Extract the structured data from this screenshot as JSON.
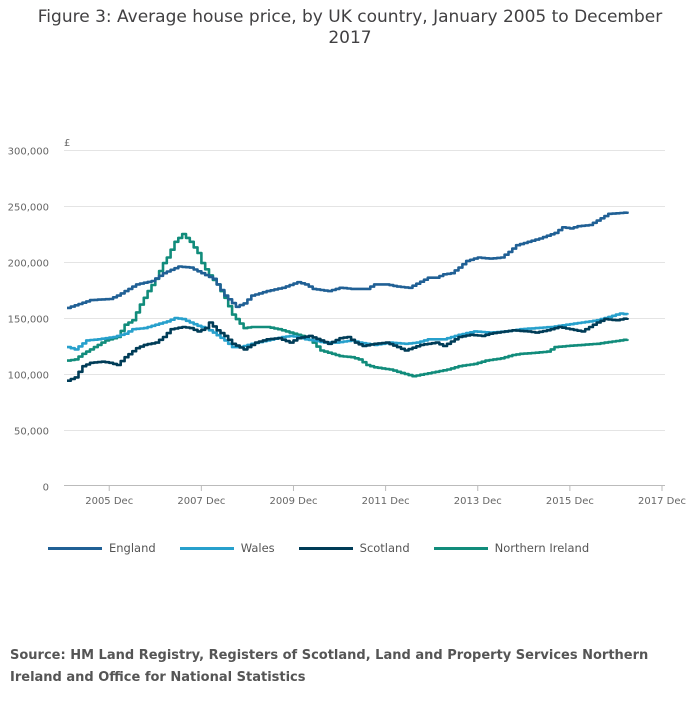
{
  "chart_data": {
    "type": "line",
    "title": "Figure 3: Average house price, by UK country, January 2005 to December 2017",
    "ylabel": "£",
    "ylim": [
      0,
      300000
    ],
    "y_ticks": [
      "0",
      "50,000",
      "100,000",
      "150,000",
      "200,000",
      "250,000",
      "300,000"
    ],
    "y_tick_values": [
      0,
      50000,
      100000,
      150000,
      200000,
      250000,
      300000
    ],
    "x_ticks": [
      "2005 Dec",
      "2007 Dec",
      "2009 Dec",
      "2011 Dec",
      "2013 Dec",
      "2015 Dec",
      "2017 Dec"
    ],
    "x_tick_months": [
      11,
      35,
      59,
      83,
      107,
      131,
      155
    ],
    "x_range_months": [
      0,
      155
    ],
    "grid": true,
    "legend_position": "bottom",
    "series": [
      {
        "name": "England",
        "color": "#206095",
        "anchors": [
          [
            0,
            159000
          ],
          [
            6,
            166000
          ],
          [
            11,
            167000
          ],
          [
            13,
            170000
          ],
          [
            18,
            180000
          ],
          [
            22,
            183000
          ],
          [
            25,
            190000
          ],
          [
            29,
            196000
          ],
          [
            32,
            195000
          ],
          [
            35,
            190000
          ],
          [
            38,
            185000
          ],
          [
            41,
            170000
          ],
          [
            44,
            160000
          ],
          [
            46,
            163000
          ],
          [
            48,
            170000
          ],
          [
            52,
            174000
          ],
          [
            56,
            177000
          ],
          [
            60,
            182000
          ],
          [
            62,
            180000
          ],
          [
            64,
            176000
          ],
          [
            68,
            174000
          ],
          [
            71,
            177000
          ],
          [
            74,
            176000
          ],
          [
            78,
            176000
          ],
          [
            80,
            180000
          ],
          [
            83,
            180000
          ],
          [
            86,
            178000
          ],
          [
            89,
            177000
          ],
          [
            94,
            186000
          ],
          [
            96,
            186000
          ],
          [
            98,
            189000
          ],
          [
            100,
            190000
          ],
          [
            102,
            195000
          ],
          [
            104,
            201000
          ],
          [
            107,
            204000
          ],
          [
            110,
            203000
          ],
          [
            113,
            204000
          ],
          [
            115,
            209000
          ],
          [
            117,
            215000
          ],
          [
            120,
            218000
          ],
          [
            123,
            221000
          ],
          [
            127,
            226000
          ],
          [
            129,
            231000
          ],
          [
            131,
            230000
          ],
          [
            133,
            232000
          ],
          [
            136,
            233000
          ],
          [
            138,
            237000
          ],
          [
            141,
            243000
          ],
          [
            145,
            244000
          ],
          [
            146,
            245000
          ]
        ]
      },
      {
        "name": "Wales",
        "color": "#27A0CC",
        "anchors": [
          [
            0,
            124000
          ],
          [
            2,
            122000
          ],
          [
            5,
            130000
          ],
          [
            8,
            131000
          ],
          [
            12,
            133000
          ],
          [
            15,
            136000
          ],
          [
            17,
            140000
          ],
          [
            20,
            141000
          ],
          [
            22,
            143000
          ],
          [
            26,
            147000
          ],
          [
            28,
            150000
          ],
          [
            30,
            149000
          ],
          [
            32,
            146000
          ],
          [
            34,
            143000
          ],
          [
            36,
            141000
          ],
          [
            38,
            137000
          ],
          [
            41,
            130000
          ],
          [
            43,
            124000
          ],
          [
            45,
            124000
          ],
          [
            48,
            127000
          ],
          [
            52,
            130000
          ],
          [
            56,
            133000
          ],
          [
            58,
            134000
          ],
          [
            60,
            133000
          ],
          [
            62,
            131000
          ],
          [
            64,
            130000
          ],
          [
            67,
            128000
          ],
          [
            70,
            128000
          ],
          [
            74,
            130000
          ],
          [
            76,
            128000
          ],
          [
            78,
            127000
          ],
          [
            80,
            126000
          ],
          [
            84,
            128000
          ],
          [
            88,
            127000
          ],
          [
            91,
            128000
          ],
          [
            94,
            131000
          ],
          [
            98,
            131000
          ],
          [
            102,
            135000
          ],
          [
            106,
            138000
          ],
          [
            110,
            137000
          ],
          [
            114,
            138000
          ],
          [
            118,
            140000
          ],
          [
            122,
            141000
          ],
          [
            126,
            142000
          ],
          [
            130,
            144000
          ],
          [
            134,
            146000
          ],
          [
            138,
            148000
          ],
          [
            141,
            151000
          ],
          [
            144,
            154000
          ],
          [
            146,
            153000
          ]
        ]
      },
      {
        "name": "Scotland",
        "color": "#003C57",
        "anchors": [
          [
            0,
            94000
          ],
          [
            2,
            97000
          ],
          [
            4,
            107000
          ],
          [
            6,
            110000
          ],
          [
            9,
            111000
          ],
          [
            11,
            110000
          ],
          [
            13,
            108000
          ],
          [
            15,
            115000
          ],
          [
            18,
            123000
          ],
          [
            20,
            126000
          ],
          [
            23,
            128000
          ],
          [
            25,
            133000
          ],
          [
            27,
            140000
          ],
          [
            30,
            142000
          ],
          [
            32,
            141000
          ],
          [
            34,
            138000
          ],
          [
            36,
            141000
          ],
          [
            37,
            146000
          ],
          [
            39,
            139000
          ],
          [
            41,
            134000
          ],
          [
            43,
            127000
          ],
          [
            46,
            122000
          ],
          [
            49,
            128000
          ],
          [
            52,
            131000
          ],
          [
            55,
            132000
          ],
          [
            58,
            128000
          ],
          [
            60,
            132000
          ],
          [
            63,
            134000
          ],
          [
            66,
            130000
          ],
          [
            68,
            127000
          ],
          [
            71,
            132000
          ],
          [
            73,
            133000
          ],
          [
            75,
            128000
          ],
          [
            77,
            125000
          ],
          [
            80,
            127000
          ],
          [
            83,
            128000
          ],
          [
            86,
            124000
          ],
          [
            88,
            121000
          ],
          [
            92,
            126000
          ],
          [
            96,
            128000
          ],
          [
            98,
            125000
          ],
          [
            100,
            129000
          ],
          [
            102,
            133000
          ],
          [
            105,
            135000
          ],
          [
            108,
            134000
          ],
          [
            110,
            136000
          ],
          [
            112,
            137000
          ],
          [
            114,
            138000
          ],
          [
            116,
            139000
          ],
          [
            120,
            138000
          ],
          [
            122,
            137000
          ],
          [
            125,
            139000
          ],
          [
            128,
            142000
          ],
          [
            131,
            140000
          ],
          [
            134,
            138000
          ],
          [
            136,
            142000
          ],
          [
            138,
            146000
          ],
          [
            140,
            149000
          ],
          [
            143,
            148000
          ],
          [
            146,
            150000
          ]
        ]
      },
      {
        "name": "Northern Ireland",
        "color": "#118C7B",
        "anchors": [
          [
            0,
            112000
          ],
          [
            2,
            113000
          ],
          [
            4,
            118000
          ],
          [
            6,
            122000
          ],
          [
            8,
            126000
          ],
          [
            10,
            130000
          ],
          [
            13,
            133000
          ],
          [
            15,
            144000
          ],
          [
            17,
            148000
          ],
          [
            19,
            162000
          ],
          [
            21,
            174000
          ],
          [
            23,
            185000
          ],
          [
            25,
            199000
          ],
          [
            26,
            204000
          ],
          [
            28,
            218000
          ],
          [
            30,
            225000
          ],
          [
            32,
            218000
          ],
          [
            34,
            208000
          ],
          [
            35,
            199000
          ],
          [
            37,
            188000
          ],
          [
            39,
            180000
          ],
          [
            41,
            168000
          ],
          [
            43,
            153000
          ],
          [
            45,
            145000
          ],
          [
            46,
            141000
          ],
          [
            48,
            142000
          ],
          [
            52,
            142000
          ],
          [
            55,
            140000
          ],
          [
            58,
            137000
          ],
          [
            62,
            133000
          ],
          [
            64,
            128000
          ],
          [
            66,
            121000
          ],
          [
            68,
            119000
          ],
          [
            71,
            116000
          ],
          [
            74,
            115000
          ],
          [
            76,
            113000
          ],
          [
            78,
            108000
          ],
          [
            80,
            106000
          ],
          [
            84,
            104000
          ],
          [
            87,
            101000
          ],
          [
            90,
            98000
          ],
          [
            93,
            100000
          ],
          [
            96,
            102000
          ],
          [
            99,
            104000
          ],
          [
            102,
            107000
          ],
          [
            106,
            109000
          ],
          [
            109,
            112000
          ],
          [
            113,
            114000
          ],
          [
            116,
            117000
          ],
          [
            118,
            118000
          ],
          [
            122,
            119000
          ],
          [
            125,
            120000
          ],
          [
            127,
            124000
          ],
          [
            130,
            125000
          ],
          [
            134,
            126000
          ],
          [
            138,
            127000
          ],
          [
            142,
            129000
          ],
          [
            146,
            131000
          ]
        ]
      }
    ]
  },
  "source": "Source: HM Land Registry, Registers of Scotland, Land and Property Services Northern Ireland and Office for National Statistics"
}
